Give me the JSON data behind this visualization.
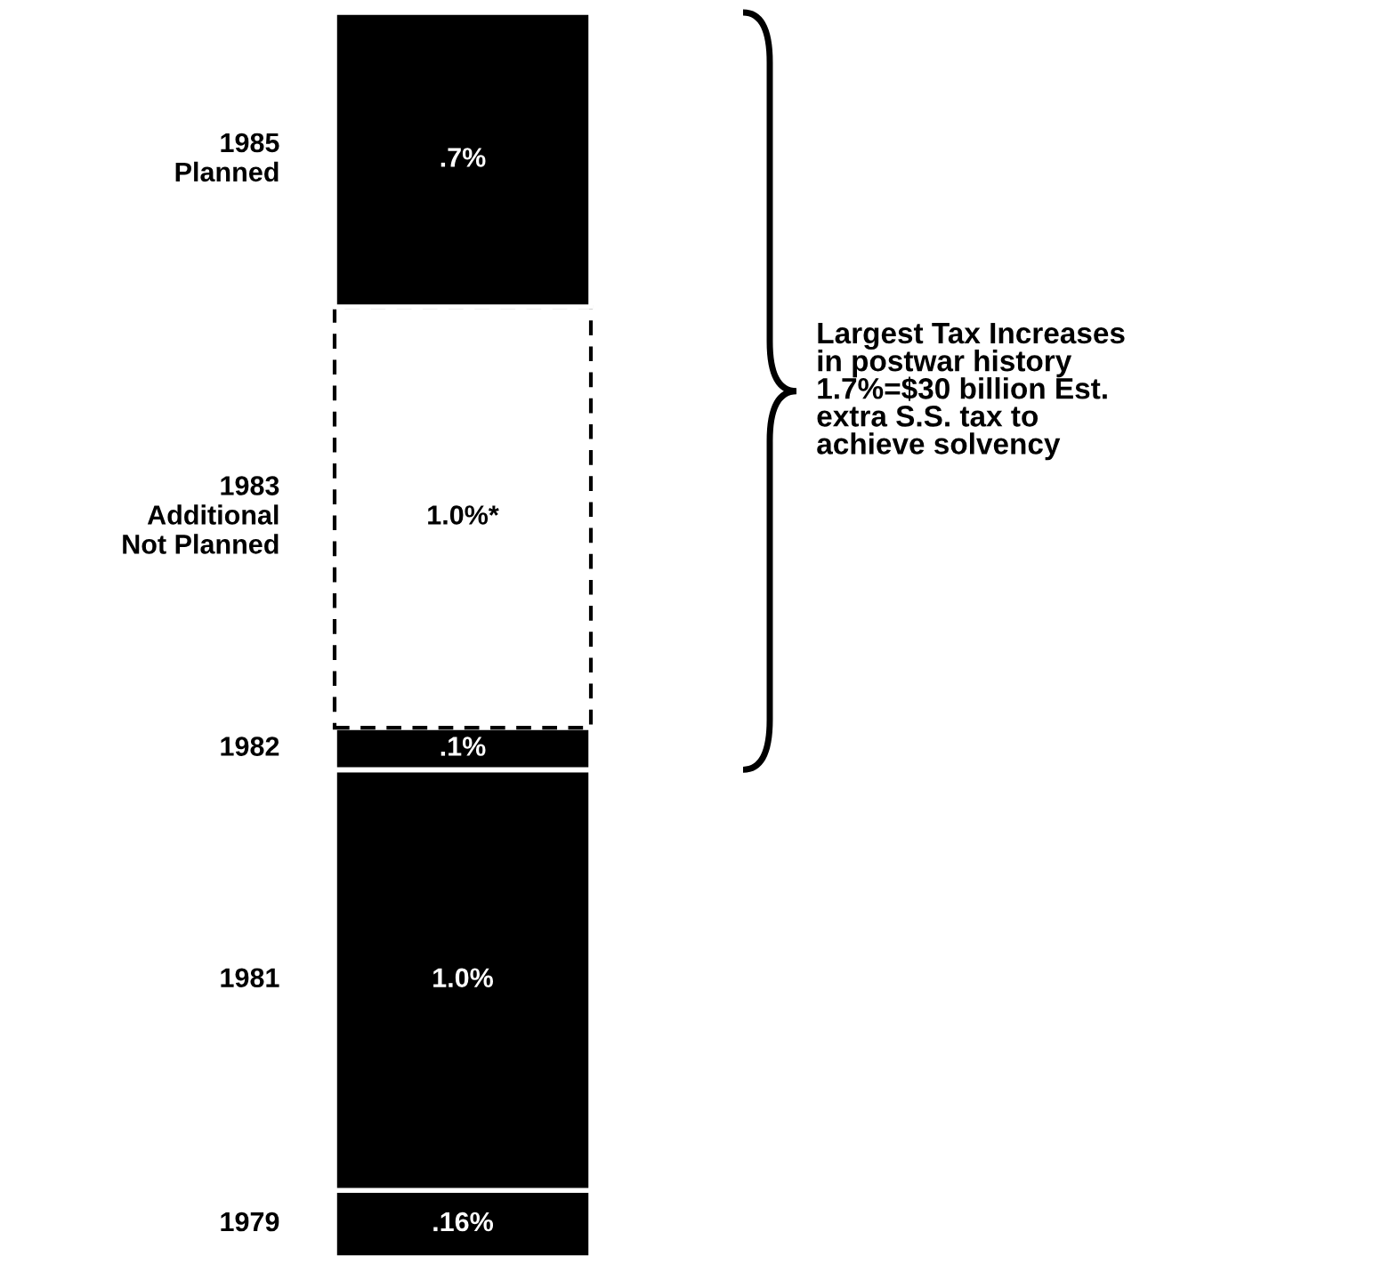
{
  "chart_data": {
    "type": "bar",
    "stacked": true,
    "categories": [
      null
    ],
    "legend": false,
    "series": [
      {
        "name": "1979",
        "color": "#000000",
        "values": [
          0.16
        ],
        "value_labels": [
          ".16%"
        ]
      },
      {
        "name": "1981",
        "color": "#000000",
        "values": [
          1.0
        ],
        "value_labels": [
          "1.0%"
        ]
      },
      {
        "name": "1982",
        "color": "#000000",
        "values": [
          0.1
        ],
        "value_labels": [
          ".1%"
        ]
      },
      {
        "name": "1983\nAdditional\nNot Planned",
        "color": "#ffffff",
        "line_style": "dashed",
        "values": [
          1.0
        ],
        "value_labels": [
          "1.0%*"
        ]
      },
      {
        "name": "1985\nPlanned",
        "color": "#000000",
        "values": [
          0.7
        ],
        "value_labels": [
          ".7%"
        ]
      }
    ],
    "annotations": [
      "Largest Tax Increases\nin postwar history\n1.7%=$30 billion Est.\nextra S.S. tax to\nachieve solvency"
    ]
  }
}
